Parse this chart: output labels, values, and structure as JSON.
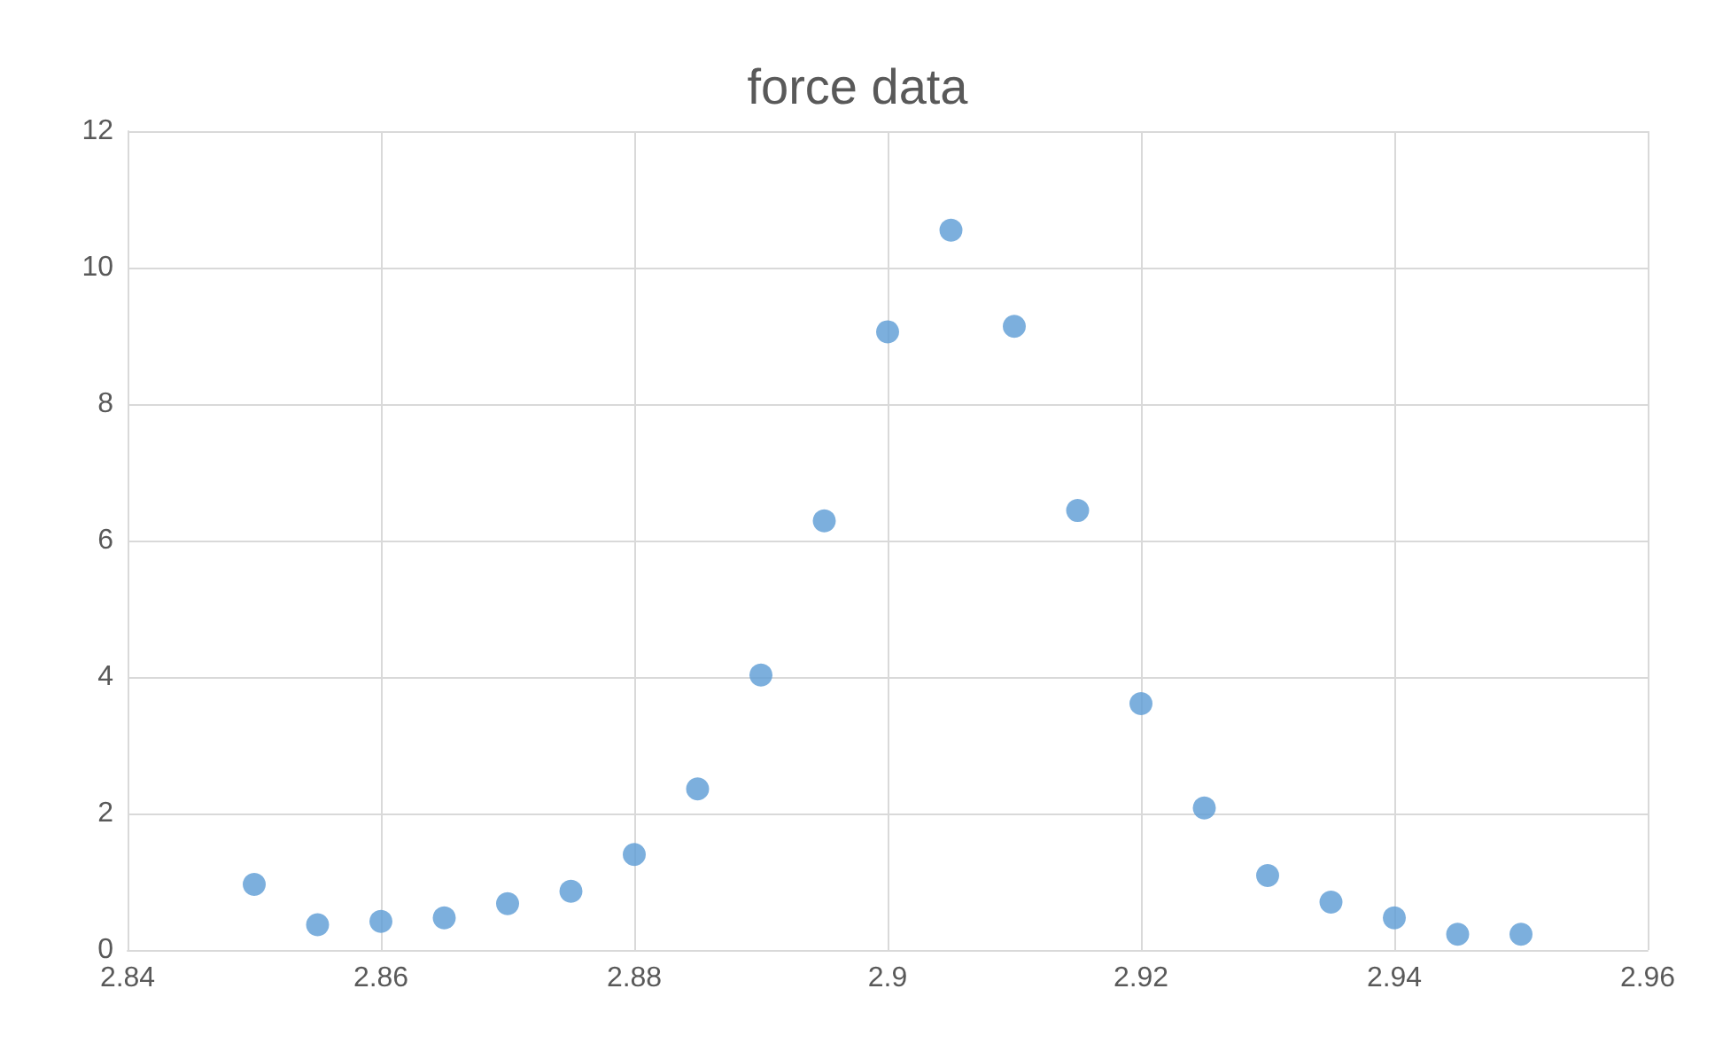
{
  "chart_data": {
    "type": "scatter",
    "title": "force data",
    "x": [
      2.85,
      2.855,
      2.86,
      2.865,
      2.87,
      2.875,
      2.88,
      2.885,
      2.89,
      2.895,
      2.9,
      2.905,
      2.91,
      2.915,
      2.92,
      2.925,
      2.93,
      2.935,
      2.94,
      2.945,
      2.95
    ],
    "series": [
      {
        "color": "#5b9bd5",
        "values": [
          0.96,
          0.37,
          0.42,
          0.47,
          0.68,
          0.86,
          1.4,
          2.36,
          4.03,
          6.29,
          9.06,
          10.55,
          9.14,
          6.44,
          3.61,
          2.08,
          1.09,
          0.7,
          0.47,
          0.23,
          0.23
        ]
      }
    ],
    "xlim": [
      2.84,
      2.96
    ],
    "xticks": [
      2.84,
      2.86,
      2.88,
      2.9,
      2.92,
      2.94,
      2.96
    ],
    "ylim": [
      0,
      12
    ],
    "yticks": [
      0,
      2,
      4,
      6,
      8,
      10,
      12
    ],
    "grid": true,
    "marker": "circle"
  }
}
